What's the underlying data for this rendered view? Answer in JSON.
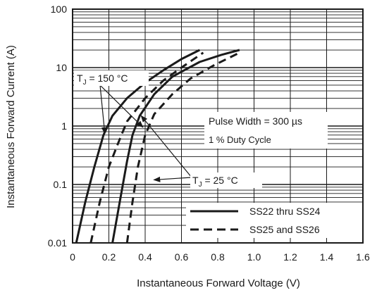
{
  "chart_data": {
    "type": "line",
    "xlabel": "Instantaneous Forward Voltage (V)",
    "ylabel": "Instantaneous Forward Current (A)",
    "xlim": [
      0,
      1.6
    ],
    "ylim": [
      0.01,
      100
    ],
    "yscale": "log",
    "grid": true,
    "x_ticks": [
      "0",
      "0.2",
      "0.4",
      "0.6",
      "0.8",
      "1.0",
      "1.2",
      "1.4",
      "1.6"
    ],
    "y_ticks": [
      "0.01",
      "0.1",
      "1",
      "10",
      "100"
    ],
    "legend_placement": "bottom-right",
    "legend": [
      {
        "label": "SS22 thru SS24",
        "style": "solid"
      },
      {
        "label": "SS25 and SS26",
        "style": "dashed"
      }
    ],
    "annotations": {
      "tj_hot": {
        "T": "T",
        "sub": "J",
        "rest": " = 150 °C"
      },
      "tj_cold": {
        "T": "T",
        "sub": "J",
        "rest": " = 25 °C"
      },
      "pulse_width": "Pulse Width = 300 µs",
      "duty_cycle": "1 % Duty Cycle"
    },
    "series": [
      {
        "legend": "SS22 thru SS24",
        "condition": "150 °C",
        "style": "solid",
        "points": [
          [
            0.02,
            0.01
          ],
          [
            0.07,
            0.05
          ],
          [
            0.12,
            0.2
          ],
          [
            0.17,
            0.7
          ],
          [
            0.22,
            1.5
          ],
          [
            0.3,
            3
          ],
          [
            0.4,
            5.5
          ],
          [
            0.5,
            9
          ],
          [
            0.6,
            14
          ],
          [
            0.7,
            20
          ]
        ]
      },
      {
        "legend": "SS25 and SS26",
        "condition": "150 °C",
        "style": "dashed",
        "points": [
          [
            0.1,
            0.01
          ],
          [
            0.15,
            0.05
          ],
          [
            0.2,
            0.2
          ],
          [
            0.25,
            0.5
          ],
          [
            0.3,
            1.2
          ],
          [
            0.4,
            3
          ],
          [
            0.5,
            6
          ],
          [
            0.6,
            10
          ],
          [
            0.72,
            18
          ]
        ]
      },
      {
        "legend": "SS22 thru SS24",
        "condition": "25 °C",
        "style": "solid",
        "points": [
          [
            0.22,
            0.01
          ],
          [
            0.26,
            0.05
          ],
          [
            0.3,
            0.25
          ],
          [
            0.33,
            0.7
          ],
          [
            0.37,
            1.5
          ],
          [
            0.45,
            3.5
          ],
          [
            0.55,
            7
          ],
          [
            0.7,
            12.5
          ],
          [
            0.82,
            16.5
          ],
          [
            0.92,
            20
          ]
        ]
      },
      {
        "legend": "SS25 and SS26",
        "condition": "25 °C",
        "style": "dashed",
        "points": [
          [
            0.3,
            0.01
          ],
          [
            0.33,
            0.05
          ],
          [
            0.36,
            0.2
          ],
          [
            0.4,
            0.7
          ],
          [
            0.45,
            1.6
          ],
          [
            0.55,
            3.5
          ],
          [
            0.65,
            6.5
          ],
          [
            0.78,
            11
          ],
          [
            0.92,
            18
          ]
        ]
      }
    ]
  },
  "colors": {
    "line": "#1a1a1a",
    "grid": "#1a1a1a",
    "background": "#ffffff"
  }
}
